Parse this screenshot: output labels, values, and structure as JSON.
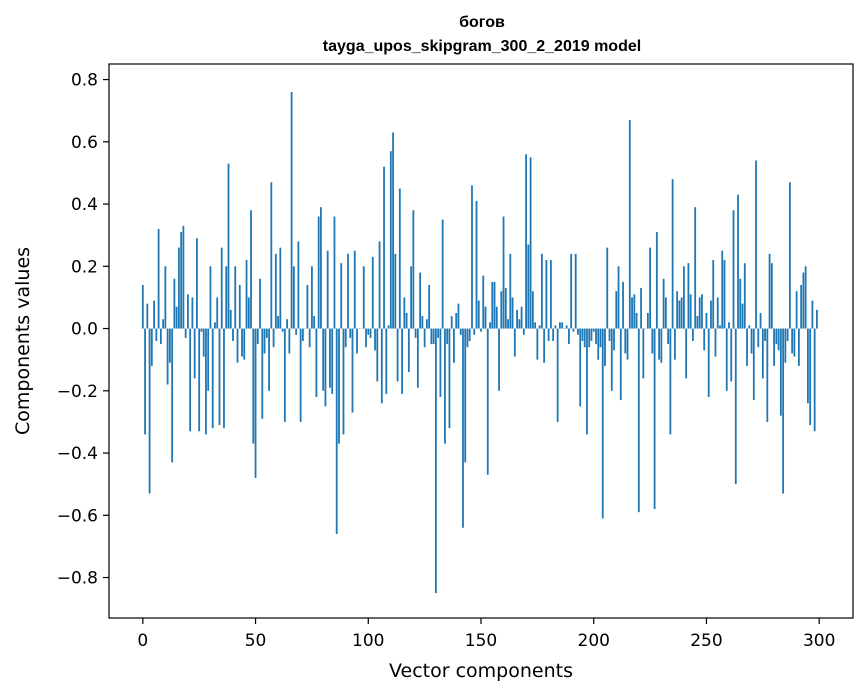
{
  "chart_data": {
    "type": "bar",
    "title": "богов",
    "subtitle": "tayga_upos_skipgram_300_2_2019 model",
    "xlabel": "Vector components",
    "ylabel": "Components values",
    "xlim": [
      -15,
      315
    ],
    "ylim": [
      -0.93,
      0.85
    ],
    "xticks": [
      0,
      50,
      100,
      150,
      200,
      250,
      300
    ],
    "yticks": [
      -0.8,
      -0.6,
      -0.4,
      -0.2,
      0.0,
      0.2,
      0.4,
      0.6,
      0.8
    ],
    "xtick_labels": [
      "0",
      "50",
      "100",
      "150",
      "200",
      "250",
      "300"
    ],
    "ytick_labels": [
      "−0.8",
      "−0.6",
      "−0.4",
      "−0.2",
      "0.0",
      "0.2",
      "0.4",
      "0.6",
      "0.8"
    ],
    "color": "#1f77b4",
    "grid": false,
    "values": [
      0.14,
      -0.34,
      0.08,
      -0.53,
      -0.12,
      0.09,
      -0.04,
      0.32,
      -0.05,
      0.03,
      0.2,
      -0.18,
      -0.11,
      -0.43,
      0.16,
      0.07,
      0.26,
      0.31,
      0.33,
      -0.03,
      0.11,
      -0.33,
      0.1,
      -0.16,
      0.29,
      -0.33,
      -0.01,
      -0.09,
      -0.34,
      -0.2,
      0.2,
      -0.32,
      0.02,
      0.1,
      -0.31,
      0.26,
      -0.32,
      0.2,
      0.53,
      0.06,
      -0.04,
      0.2,
      -0.11,
      0.14,
      -0.09,
      -0.1,
      0.22,
      0.1,
      0.38,
      -0.37,
      -0.48,
      -0.05,
      0.16,
      -0.29,
      -0.08,
      -0.03,
      -0.2,
      0.47,
      -0.06,
      0.24,
      0.04,
      0.26,
      -0.01,
      -0.3,
      0.03,
      -0.08,
      0.76,
      0.2,
      -0.02,
      0.28,
      -0.3,
      -0.04,
      0.0,
      0.14,
      -0.06,
      0.2,
      0.04,
      -0.22,
      0.36,
      0.39,
      -0.2,
      -0.25,
      0.25,
      -0.19,
      -0.21,
      0.36,
      -0.66,
      -0.37,
      0.21,
      -0.34,
      -0.06,
      0.24,
      -0.03,
      -0.27,
      0.25,
      -0.08,
      0.0,
      0.0,
      0.2,
      -0.06,
      -0.02,
      -0.03,
      0.23,
      -0.07,
      -0.17,
      0.28,
      -0.24,
      0.52,
      -0.21,
      0.01,
      0.57,
      0.63,
      0.24,
      -0.17,
      0.45,
      -0.21,
      0.1,
      0.05,
      -0.14,
      0.2,
      0.38,
      -0.03,
      -0.19,
      0.18,
      0.04,
      -0.06,
      0.03,
      0.14,
      -0.05,
      -0.05,
      -0.85,
      -0.03,
      -0.22,
      0.35,
      -0.37,
      -0.05,
      -0.32,
      0.04,
      -0.11,
      0.05,
      0.08,
      -0.02,
      -0.64,
      -0.43,
      -0.06,
      -0.04,
      0.46,
      -0.02,
      0.41,
      0.09,
      -0.01,
      0.17,
      0.07,
      -0.47,
      0.02,
      0.15,
      0.15,
      0.07,
      -0.2,
      0.12,
      0.36,
      0.13,
      0.03,
      0.24,
      0.1,
      -0.09,
      0.06,
      0.03,
      0.07,
      -0.02,
      0.56,
      0.27,
      0.55,
      0.12,
      0.02,
      -0.1,
      0.01,
      0.24,
      -0.11,
      0.22,
      -0.04,
      0.22,
      -0.04,
      0.01,
      -0.3,
      0.02,
      0.02,
      0.0,
      0.01,
      -0.05,
      0.24,
      -0.01,
      0.24,
      -0.02,
      -0.25,
      -0.04,
      -0.06,
      -0.34,
      -0.06,
      -0.04,
      -0.01,
      -0.05,
      -0.1,
      -0.06,
      -0.61,
      -0.12,
      0.26,
      -0.04,
      -0.2,
      -0.07,
      0.12,
      0.2,
      -0.23,
      0.15,
      -0.08,
      -0.1,
      0.67,
      0.1,
      0.11,
      0.05,
      -0.59,
      0.13,
      -0.16,
      0.0,
      0.05,
      0.26,
      -0.08,
      -0.58,
      0.31,
      -0.1,
      -0.11,
      0.16,
      0.1,
      -0.05,
      -0.34,
      0.48,
      -0.1,
      0.12,
      0.09,
      0.1,
      0.2,
      -0.16,
      0.21,
      0.11,
      -0.04,
      0.39,
      0.04,
      0.1,
      0.11,
      -0.07,
      0.05,
      -0.22,
      0.09,
      0.22,
      -0.09,
      0.1,
      0.01,
      0.25,
      0.22,
      -0.2,
      0.02,
      -0.17,
      0.38,
      -0.5,
      0.43,
      0.16,
      0.08,
      0.21,
      -0.12,
      0.01,
      -0.08,
      -0.23,
      0.54,
      -0.06,
      0.05,
      -0.16,
      -0.04,
      -0.3,
      0.24,
      0.21,
      -0.12,
      -0.05,
      -0.07,
      -0.28,
      -0.53,
      -0.11,
      -0.04,
      0.47,
      -0.08,
      -0.09,
      0.12,
      -0.12,
      0.14,
      0.18,
      0.2,
      -0.24,
      -0.31,
      0.09,
      -0.33,
      0.06
    ]
  }
}
